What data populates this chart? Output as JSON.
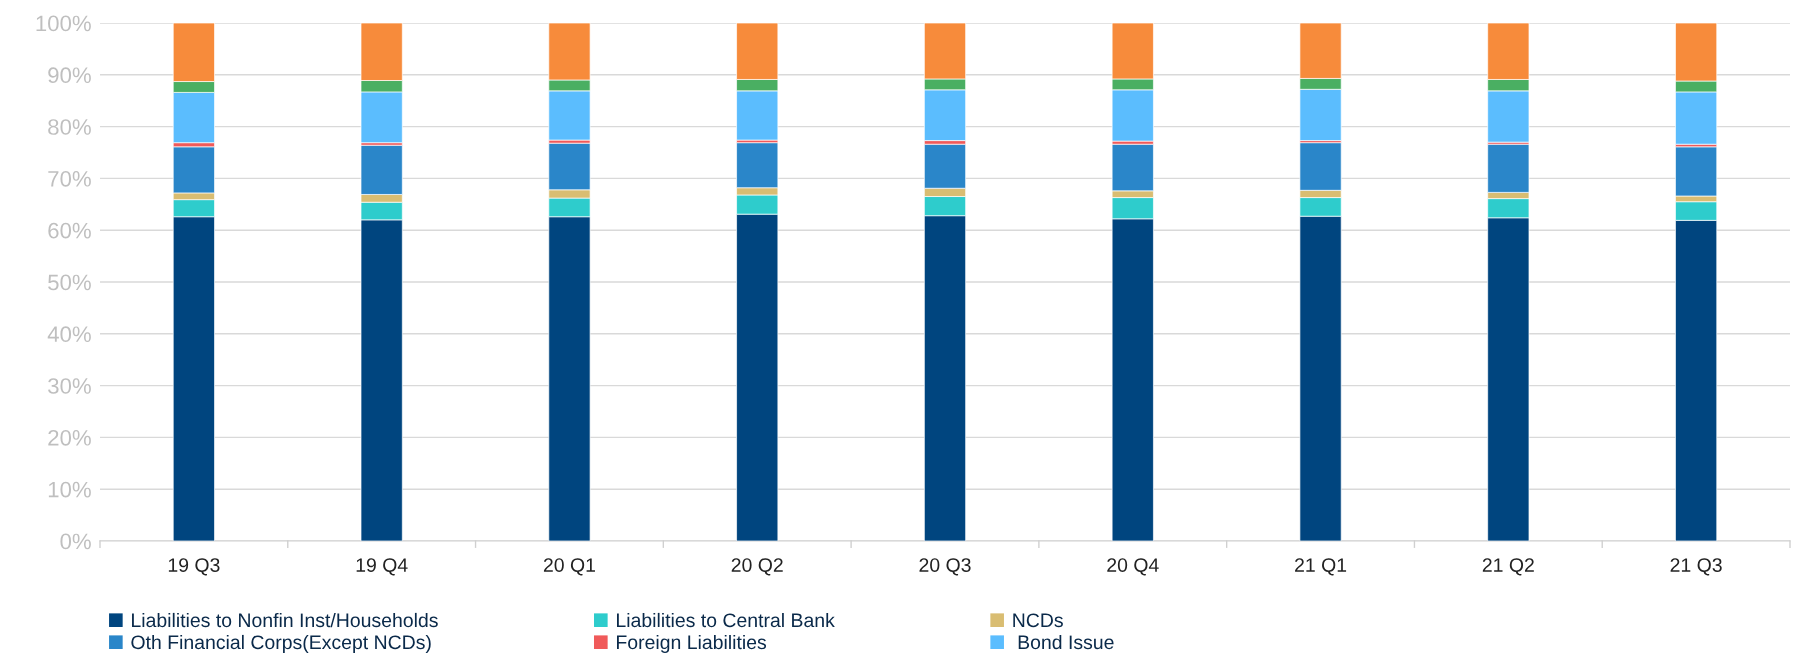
{
  "chart_data": {
    "type": "bar",
    "stacked": true,
    "categories": [
      "19 Q3",
      "19 Q4",
      "20 Q1",
      "20 Q2",
      "20 Q3",
      "20 Q4",
      "21 Q1",
      "21 Q2",
      "21 Q3"
    ],
    "series": [
      {
        "name": "Liabilities to Nonfin Inst/Households",
        "color": "#00457f",
        "values": [
          62.6,
          62.0,
          62.6,
          63.1,
          62.8,
          62.2,
          62.7,
          62.4,
          61.9
        ]
      },
      {
        "name": "Liabilities to Central Bank",
        "color": "#2ecccc",
        "values": [
          3.3,
          3.4,
          3.6,
          3.7,
          3.7,
          4.1,
          3.6,
          3.7,
          3.6
        ]
      },
      {
        "name": "NCDs",
        "color": "#d9bd72",
        "values": [
          1.3,
          1.5,
          1.6,
          1.4,
          1.6,
          1.3,
          1.4,
          1.2,
          1.1
        ]
      },
      {
        "name": "Oth Financial Corps(Except NCDs)",
        "color": "#2a86c9",
        "values": [
          8.9,
          9.5,
          9.0,
          8.7,
          8.5,
          9.0,
          9.2,
          9.3,
          9.5
        ]
      },
      {
        "name": "Foreign Liabilities",
        "color": "#f05a5a",
        "values": [
          0.8,
          0.5,
          0.6,
          0.5,
          0.7,
          0.6,
          0.4,
          0.4,
          0.5
        ]
      },
      {
        "name": " Bond Issue",
        "color": "#5bbdfe",
        "values": [
          9.7,
          9.8,
          9.5,
          9.5,
          9.8,
          9.9,
          9.9,
          9.9,
          10.1
        ]
      },
      {
        "color": "#4aaf62",
        "values": [
          2.1,
          2.2,
          2.1,
          2.2,
          2.1,
          2.1,
          2.1,
          2.2,
          2.1
        ]
      },
      {
        "color": "#f78b3b",
        "values": [
          11.3,
          11.1,
          11.0,
          10.9,
          10.8,
          10.8,
          10.7,
          10.9,
          11.2
        ]
      }
    ],
    "ylim": [
      0,
      100
    ],
    "yticks": [
      {
        "value": 0,
        "label": "0%"
      },
      {
        "value": 10,
        "label": "10%"
      },
      {
        "value": 20,
        "label": "20%"
      },
      {
        "value": 30,
        "label": "30%"
      },
      {
        "value": 40,
        "label": "40%"
      },
      {
        "value": 50,
        "label": "50%"
      },
      {
        "value": 60,
        "label": "60%"
      },
      {
        "value": 70,
        "label": "70%"
      },
      {
        "value": 80,
        "label": "80%"
      },
      {
        "value": 90,
        "label": "90%"
      },
      {
        "value": 100,
        "label": "100%"
      }
    ],
    "grid": "y",
    "legend": "bottom"
  }
}
